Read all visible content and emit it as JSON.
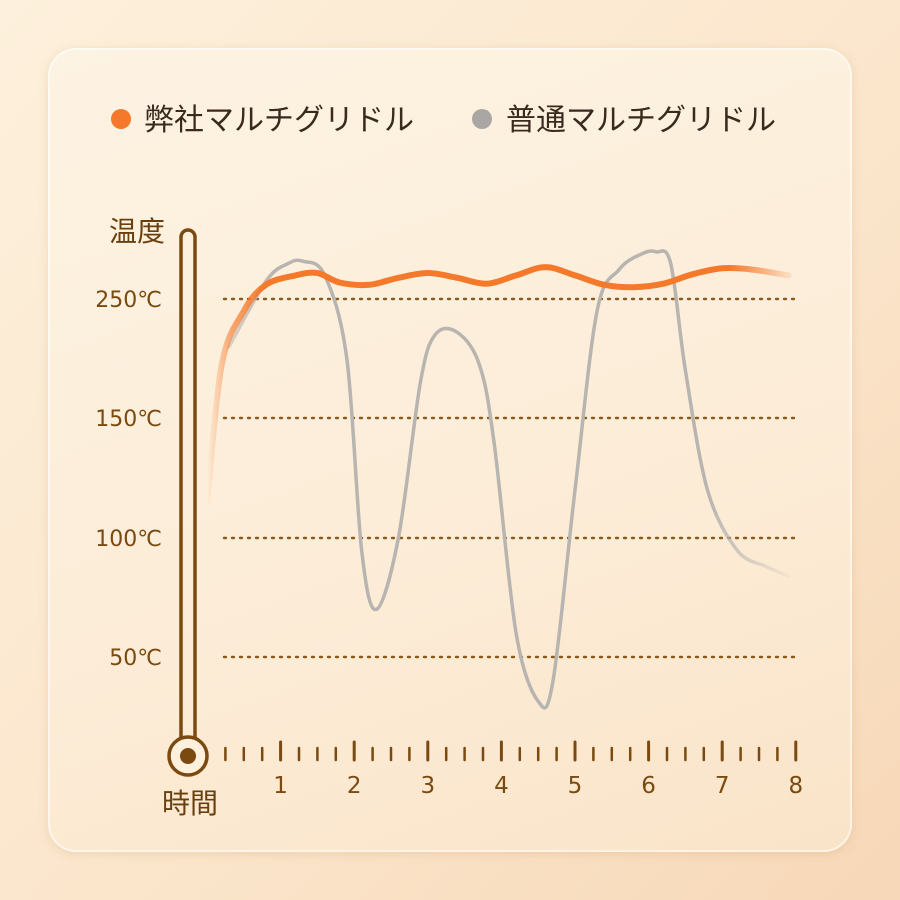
{
  "chart_data": {
    "type": "line",
    "legend_position": "top",
    "series": [
      {
        "name": "弊社マルチグリドル",
        "color": "#f5792a",
        "x": [
          0,
          0.2,
          0.5,
          0.8,
          1.2,
          1.5,
          1.8,
          2.2,
          2.6,
          3.0,
          3.4,
          3.8,
          4.2,
          4.6,
          5.0,
          5.4,
          5.8,
          6.2,
          6.6,
          7.0,
          7.4,
          7.9
        ],
        "y": [
          115,
          195,
          240,
          262,
          270,
          272,
          264,
          262,
          268,
          272,
          268,
          263,
          270,
          277,
          270,
          262,
          260,
          263,
          271,
          276,
          275,
          270
        ]
      },
      {
        "name": "普通マルチグリドル",
        "color": "#b8b4b0",
        "x": [
          0.3,
          0.8,
          1.1,
          1.3,
          1.6,
          1.9,
          2.1,
          2.3,
          2.6,
          2.9,
          3.1,
          3.4,
          3.7,
          3.9,
          4.2,
          4.5,
          4.7,
          5.0,
          5.3,
          5.6,
          5.9,
          6.1,
          6.3,
          6.5,
          6.8,
          7.2,
          7.6,
          7.9
        ],
        "y": [
          210,
          265,
          280,
          282,
          270,
          200,
          95,
          70,
          100,
          180,
          220,
          222,
          195,
          140,
          60,
          32,
          40,
          120,
          240,
          275,
          288,
          290,
          280,
          190,
          120,
          95,
          88,
          84
        ]
      }
    ],
    "y_ticks": [
      "250℃",
      "150℃",
      "100℃",
      "50℃"
    ],
    "x_ticks": [
      "1",
      "2",
      "3",
      "4",
      "5",
      "6",
      "7",
      "8"
    ],
    "xlabel": "時間",
    "ylabel": "温度",
    "grid": "dotted horizontal"
  }
}
